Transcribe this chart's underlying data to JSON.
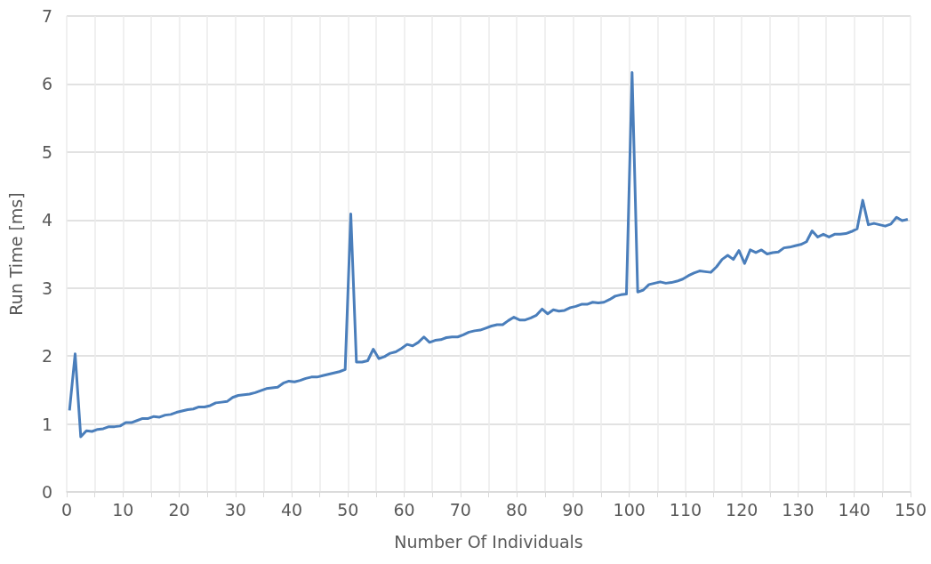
{
  "chart_data": {
    "type": "line",
    "xlabel": "Number Of Individuals",
    "ylabel": "Run Time [ms]",
    "x": [
      0.5,
      1.5,
      2.5,
      3.5,
      4.5,
      5.5,
      6.5,
      7.5,
      8.5,
      9.5,
      10.5,
      11.5,
      12.5,
      13.5,
      14.5,
      15.5,
      16.5,
      17.5,
      18.5,
      19.5,
      20.5,
      21.5,
      22.5,
      23.5,
      24.5,
      25.5,
      26.5,
      27.5,
      28.5,
      29.5,
      30.5,
      31.5,
      32.5,
      33.5,
      34.5,
      35.5,
      36.5,
      37.5,
      38.5,
      39.5,
      40.5,
      41.5,
      42.5,
      43.5,
      44.5,
      45.5,
      46.5,
      47.5,
      48.5,
      49.5,
      50.5,
      51.5,
      52.5,
      53.5,
      54.5,
      55.5,
      56.5,
      57.5,
      58.5,
      59.5,
      60.5,
      61.5,
      62.5,
      63.5,
      64.5,
      65.5,
      66.5,
      67.5,
      68.5,
      69.5,
      70.5,
      71.5,
      72.5,
      73.5,
      74.5,
      75.5,
      76.5,
      77.5,
      78.5,
      79.5,
      80.5,
      81.5,
      82.5,
      83.5,
      84.5,
      85.5,
      86.5,
      87.5,
      88.5,
      89.5,
      90.5,
      91.5,
      92.5,
      93.5,
      94.5,
      95.5,
      96.5,
      97.5,
      98.5,
      99.5,
      100.5,
      101.5,
      102.5,
      103.5,
      104.5,
      105.5,
      106.5,
      107.5,
      108.5,
      109.5,
      110.5,
      111.5,
      112.5,
      113.5,
      114.5,
      115.5,
      116.5,
      117.5,
      118.5,
      119.5,
      120.5,
      121.5,
      122.5,
      123.5,
      124.5,
      125.5,
      126.5,
      127.5,
      128.5,
      129.5,
      130.5,
      131.5,
      132.5,
      133.5,
      134.5,
      135.5,
      136.5,
      137.5,
      138.5,
      139.5,
      140.5,
      141.5,
      142.5,
      143.5,
      144.5,
      145.5,
      146.5,
      147.5,
      148.5,
      149.5
    ],
    "series": [
      {
        "color": "#4a7ebb",
        "values": [
          1.2,
          2.03,
          0.81,
          0.9,
          0.89,
          0.92,
          0.93,
          0.96,
          0.96,
          0.97,
          1.02,
          1.02,
          1.05,
          1.08,
          1.08,
          1.11,
          1.1,
          1.13,
          1.14,
          1.17,
          1.19,
          1.21,
          1.22,
          1.25,
          1.25,
          1.27,
          1.31,
          1.32,
          1.33,
          1.39,
          1.42,
          1.43,
          1.44,
          1.46,
          1.49,
          1.52,
          1.53,
          1.54,
          1.6,
          1.63,
          1.62,
          1.64,
          1.67,
          1.69,
          1.69,
          1.71,
          1.73,
          1.75,
          1.77,
          1.8,
          4.09,
          1.91,
          1.91,
          1.93,
          2.1,
          1.96,
          1.99,
          2.04,
          2.06,
          2.11,
          2.17,
          2.15,
          2.2,
          2.28,
          2.2,
          2.23,
          2.24,
          2.27,
          2.28,
          2.28,
          2.31,
          2.35,
          2.37,
          2.38,
          2.41,
          2.44,
          2.46,
          2.46,
          2.52,
          2.57,
          2.53,
          2.53,
          2.56,
          2.6,
          2.69,
          2.62,
          2.68,
          2.66,
          2.67,
          2.71,
          2.73,
          2.76,
          2.76,
          2.79,
          2.78,
          2.79,
          2.83,
          2.88,
          2.9,
          2.91,
          6.17,
          2.94,
          2.97,
          3.05,
          3.07,
          3.09,
          3.07,
          3.08,
          3.1,
          3.13,
          3.18,
          3.22,
          3.25,
          3.24,
          3.23,
          3.31,
          3.42,
          3.48,
          3.42,
          3.55,
          3.36,
          3.56,
          3.52,
          3.56,
          3.5,
          3.52,
          3.53,
          3.59,
          3.6,
          3.62,
          3.64,
          3.68,
          3.84,
          3.75,
          3.79,
          3.75,
          3.79,
          3.79,
          3.8,
          3.83,
          3.87,
          4.29,
          3.93,
          3.95,
          3.93,
          3.91,
          3.94,
          4.04,
          3.99,
          4.01
        ]
      }
    ],
    "xlim": [
      0,
      150
    ],
    "xticks": [
      0,
      {
        "value": 5,
        "label": null
      },
      10,
      {
        "value": 15,
        "label": null
      },
      20,
      {
        "value": 25,
        "label": null
      },
      30,
      {
        "value": 35,
        "label": null
      },
      40,
      {
        "value": 45,
        "label": null
      },
      50,
      {
        "value": 55,
        "label": null
      },
      60,
      {
        "value": 65,
        "label": null
      },
      70,
      {
        "value": 75,
        "label": null
      },
      80,
      {
        "value": 85,
        "label": null
      },
      90,
      {
        "value": 95,
        "label": null
      },
      100,
      {
        "value": 105,
        "label": null
      },
      110,
      {
        "value": 115,
        "label": null
      },
      120,
      {
        "value": 125,
        "label": null
      },
      130,
      {
        "value": 135,
        "label": null
      },
      140,
      {
        "value": 145,
        "label": null
      },
      150
    ],
    "ylim": [
      0,
      7
    ],
    "yticks": [
      0,
      1,
      2,
      3,
      4,
      5,
      6,
      7
    ],
    "grid": true,
    "marker": "none",
    "line_style": "solid"
  }
}
